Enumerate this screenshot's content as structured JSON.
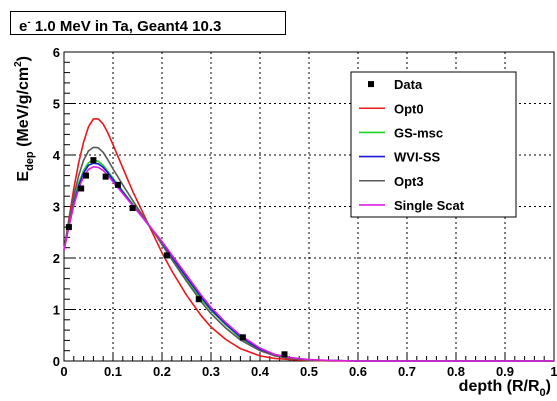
{
  "title": {
    "particle": "e",
    "charge": "-",
    "text": " 1.0 MeV in Ta, Geant4 10.3"
  },
  "chart_data": {
    "type": "line",
    "xlabel": "depth (R/R",
    "xlabel_sub": "0",
    "xlabel_end": ")",
    "ylabel": "E",
    "ylabel_sub": "dep",
    "ylabel_units": " (MeV/g/cm",
    "ylabel_sup": "2",
    "ylabel_end": ")",
    "xlim": [
      0,
      1
    ],
    "ylim": [
      0,
      6
    ],
    "grid": true,
    "legend_position": "top-right",
    "x_ticks": [
      "0",
      "0.1",
      "0.2",
      "0.3",
      "0.4",
      "0.5",
      "0.6",
      "0.7",
      "0.8",
      "0.9",
      "1"
    ],
    "y_ticks": [
      "0",
      "1",
      "2",
      "3",
      "4",
      "5",
      "6"
    ],
    "data_points": {
      "name": "Data",
      "x": [
        0.01,
        0.035,
        0.045,
        0.06,
        0.085,
        0.11,
        0.14,
        0.21,
        0.275,
        0.365,
        0.45
      ],
      "y": [
        2.6,
        3.35,
        3.6,
        3.9,
        3.58,
        3.42,
        2.97,
        2.05,
        1.2,
        0.46,
        0.13
      ]
    },
    "series": [
      {
        "name": "Opt0",
        "color": "#e8191c",
        "x": [
          0,
          0.01,
          0.02,
          0.03,
          0.04,
          0.05,
          0.06,
          0.07,
          0.08,
          0.09,
          0.1,
          0.12,
          0.14,
          0.16,
          0.18,
          0.2,
          0.22,
          0.25,
          0.28,
          0.3,
          0.33,
          0.36,
          0.4,
          0.43,
          0.46,
          0.5,
          0.55,
          0.6,
          1.0
        ],
        "y": [
          2.15,
          2.75,
          3.35,
          3.85,
          4.25,
          4.55,
          4.7,
          4.7,
          4.6,
          4.42,
          4.2,
          3.75,
          3.3,
          2.9,
          2.5,
          2.1,
          1.75,
          1.28,
          0.88,
          0.66,
          0.42,
          0.24,
          0.1,
          0.05,
          0.03,
          0.01,
          0.0,
          0.0,
          0.0
        ]
      },
      {
        "name": "GS-msc",
        "color": "#1ed21e",
        "x": [
          0,
          0.01,
          0.02,
          0.03,
          0.04,
          0.05,
          0.06,
          0.07,
          0.08,
          0.09,
          0.1,
          0.12,
          0.14,
          0.16,
          0.18,
          0.2,
          0.22,
          0.25,
          0.28,
          0.3,
          0.33,
          0.36,
          0.4,
          0.43,
          0.46,
          0.5,
          0.55,
          0.6,
          1.0
        ],
        "y": [
          2.15,
          2.65,
          3.1,
          3.45,
          3.7,
          3.85,
          3.9,
          3.88,
          3.8,
          3.68,
          3.55,
          3.3,
          3.05,
          2.8,
          2.55,
          2.28,
          2.0,
          1.6,
          1.2,
          0.98,
          0.7,
          0.45,
          0.22,
          0.12,
          0.06,
          0.02,
          0.01,
          0.0,
          0.0
        ]
      },
      {
        "name": "WVI-SS",
        "color": "#1a1ad9",
        "x": [
          0,
          0.01,
          0.02,
          0.03,
          0.04,
          0.05,
          0.06,
          0.07,
          0.08,
          0.09,
          0.1,
          0.12,
          0.14,
          0.16,
          0.18,
          0.2,
          0.22,
          0.25,
          0.28,
          0.3,
          0.33,
          0.36,
          0.4,
          0.43,
          0.46,
          0.5,
          0.55,
          0.6,
          1.0
        ],
        "y": [
          2.15,
          2.62,
          3.05,
          3.4,
          3.65,
          3.8,
          3.84,
          3.83,
          3.76,
          3.65,
          3.52,
          3.28,
          3.03,
          2.79,
          2.55,
          2.3,
          2.03,
          1.63,
          1.24,
          1.0,
          0.72,
          0.47,
          0.23,
          0.12,
          0.06,
          0.02,
          0.01,
          0.0,
          0.0
        ]
      },
      {
        "name": "Opt3",
        "color": "#5a5a5a",
        "x": [
          0,
          0.01,
          0.02,
          0.03,
          0.04,
          0.05,
          0.06,
          0.07,
          0.08,
          0.09,
          0.1,
          0.12,
          0.14,
          0.16,
          0.18,
          0.2,
          0.22,
          0.25,
          0.28,
          0.3,
          0.33,
          0.36,
          0.4,
          0.43,
          0.46,
          0.5,
          0.55,
          0.6,
          1.0
        ],
        "y": [
          2.15,
          2.7,
          3.2,
          3.6,
          3.9,
          4.08,
          4.15,
          4.14,
          4.05,
          3.9,
          3.73,
          3.42,
          3.12,
          2.83,
          2.55,
          2.26,
          1.97,
          1.55,
          1.15,
          0.92,
          0.64,
          0.41,
          0.2,
          0.1,
          0.05,
          0.02,
          0.01,
          0.0,
          0.0
        ]
      },
      {
        "name": "Single Scat",
        "color": "#e01ee0",
        "x": [
          0,
          0.01,
          0.02,
          0.03,
          0.04,
          0.05,
          0.06,
          0.07,
          0.08,
          0.09,
          0.1,
          0.12,
          0.14,
          0.16,
          0.18,
          0.2,
          0.22,
          0.25,
          0.28,
          0.3,
          0.33,
          0.36,
          0.4,
          0.43,
          0.46,
          0.5,
          0.55,
          0.6,
          1.0
        ],
        "y": [
          2.15,
          2.6,
          3.02,
          3.35,
          3.58,
          3.72,
          3.77,
          3.76,
          3.7,
          3.6,
          3.48,
          3.25,
          3.02,
          2.79,
          2.56,
          2.32,
          2.06,
          1.67,
          1.28,
          1.04,
          0.75,
          0.5,
          0.25,
          0.13,
          0.07,
          0.03,
          0.01,
          0.0,
          0.0
        ]
      }
    ]
  }
}
